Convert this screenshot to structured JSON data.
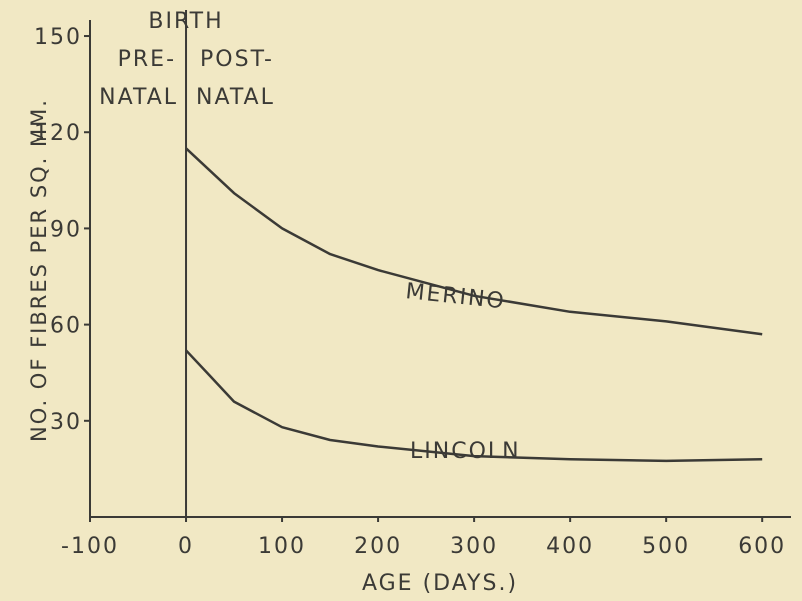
{
  "chart_data": {
    "type": "line",
    "xlabel": "AGE (DAYS.)",
    "ylabel": "NO. OF FIBRES PER SQ. MM.",
    "annotations": [
      "BIRTH",
      "PRE-",
      "NATAL",
      "POST-",
      "NATAL"
    ],
    "xlim": [
      -100,
      630
    ],
    "xticks": [
      -100,
      0,
      100,
      200,
      300,
      400,
      500,
      600
    ],
    "ylim": [
      0,
      155
    ],
    "yticks": [
      30,
      60,
      90,
      120,
      150
    ],
    "birth_line": 0,
    "grid": false,
    "series": [
      {
        "name": "MERINO",
        "color": "#3b3a36",
        "x": [
          0,
          25,
          50,
          100,
          150,
          200,
          300,
          400,
          500,
          600
        ],
        "values": [
          115,
          108,
          101,
          90,
          82,
          77,
          69,
          64,
          61,
          57
        ]
      },
      {
        "name": "LINCOLN",
        "color": "#3b3a36",
        "x": [
          0,
          25,
          50,
          100,
          150,
          200,
          300,
          400,
          500,
          600
        ],
        "values": [
          52,
          44,
          36,
          28,
          24,
          22,
          19,
          18,
          17.5,
          18
        ]
      }
    ]
  }
}
